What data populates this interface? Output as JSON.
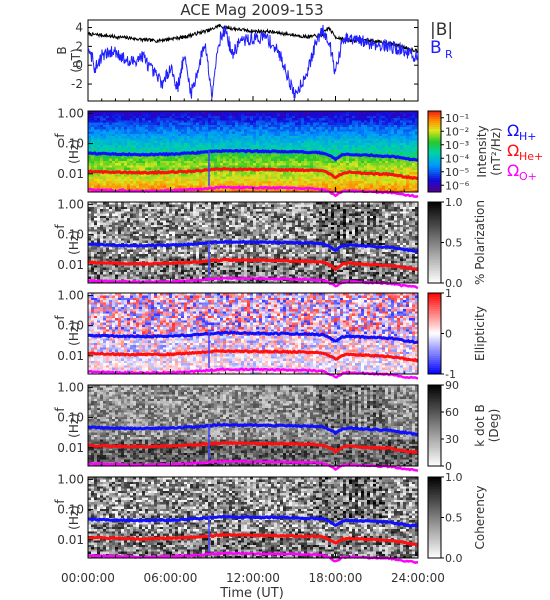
{
  "figure": {
    "title": "ACE Mag 2009-153",
    "xlabel": "Time (UT)",
    "time_ticks": [
      "00:00:00",
      "06:00:00",
      "12:00:00",
      "18:00:00",
      "24:00:00"
    ]
  },
  "chart_data": [
    {
      "type": "line",
      "panel": "magnetic-field",
      "ylabel": "B",
      "yunit": "(nT)",
      "ylim": [
        -3.8,
        4.8
      ],
      "yticks": [
        "4",
        "2",
        "0",
        "-2"
      ],
      "xlim_hours": [
        0,
        24
      ],
      "series": [
        {
          "name": "|B|",
          "color": "#000000",
          "x": [
            0,
            1,
            2,
            3,
            4,
            5,
            6,
            7,
            8,
            9,
            9.5,
            10,
            10.5,
            11,
            12,
            13,
            14,
            15,
            16,
            17,
            17.5,
            18,
            19,
            20,
            21,
            22,
            23,
            24
          ],
          "y": [
            3.3,
            3.2,
            3.0,
            2.9,
            2.7,
            2.6,
            2.8,
            3.0,
            3.4,
            3.8,
            4.2,
            4.0,
            3.9,
            3.8,
            3.6,
            3.6,
            3.4,
            3.2,
            3.0,
            3.2,
            4.0,
            3.0,
            2.6,
            2.7,
            2.5,
            2.3,
            1.9,
            1.5
          ]
        },
        {
          "name": "B",
          "subscript": "R",
          "color": "#2020ff",
          "x": [
            0,
            0.5,
            1,
            2,
            3,
            4,
            4.5,
            5,
            5.5,
            6,
            6.5,
            7,
            7.5,
            8,
            8.5,
            9,
            9.5,
            10,
            10.5,
            11,
            12,
            13,
            14,
            14.5,
            15,
            15.5,
            16,
            16.5,
            17,
            17.5,
            18,
            18.5,
            19,
            20,
            21,
            22,
            23,
            24
          ],
          "y": [
            2.5,
            -0.5,
            1.0,
            1.5,
            0.2,
            1.0,
            -0.3,
            -1.2,
            -2.0,
            0.0,
            -2.5,
            1.0,
            -3.0,
            -0.5,
            2.5,
            -3.0,
            2.5,
            3.8,
            1.0,
            2.5,
            2.8,
            3.0,
            1.0,
            -1.0,
            -3.2,
            -2.0,
            -0.5,
            2.0,
            3.8,
            2.8,
            -0.8,
            2.5,
            2.8,
            2.5,
            2.2,
            2.0,
            1.5,
            0.8
          ]
        }
      ]
    },
    {
      "type": "heatmap",
      "panel": "intensity",
      "ylabel": "f",
      "yunit": "(Hz)",
      "colorbar_label": "Intensity",
      "colorbar_unit": "(nT²/Hz)",
      "colorbar_ticks": [
        "10⁻¹",
        "10⁻²",
        "10⁻³",
        "10⁻⁴",
        "10⁻⁵",
        "10⁻⁶"
      ],
      "colormap": "rainbow"
    },
    {
      "type": "heatmap",
      "panel": "polarization",
      "ylabel": "f",
      "yunit": "(Hz)",
      "colorbar_label": "% Polarization",
      "colorbar_ticks": [
        "1.0",
        "0.5",
        "0.0"
      ],
      "colormap": "gray"
    },
    {
      "type": "heatmap",
      "panel": "ellipticity",
      "ylabel": "f",
      "yunit": "(Hz)",
      "colorbar_label": "Ellipticity",
      "colorbar_ticks": [
        "1",
        "0",
        "-1"
      ],
      "colormap": "blue-white-red"
    },
    {
      "type": "heatmap",
      "panel": "k-dot-b",
      "ylabel": "f",
      "yunit": "(Hz)",
      "colorbar_label": "k dot B",
      "colorbar_unit": "(Deg)",
      "colorbar_ticks": [
        "90",
        "60",
        "30",
        "0"
      ],
      "colormap": "gray"
    },
    {
      "type": "heatmap",
      "panel": "coherency",
      "ylabel": "f",
      "yunit": "(Hz)",
      "colorbar_label": "Coherency",
      "colorbar_ticks": [
        "1.0",
        "0.5",
        "0.0"
      ],
      "colormap": "gray"
    }
  ],
  "spectrogram": {
    "yticks": [
      "1.00",
      "0.10",
      "0.01"
    ],
    "ylim_hz": [
      0.0025,
      1.2
    ],
    "gyro_lines": [
      {
        "name": "Ω",
        "subscript": "H+",
        "color": "#1010ff",
        "x": [
          0,
          2,
          4,
          6,
          8,
          9,
          10,
          12,
          14,
          16,
          17,
          17.5,
          18,
          18.5,
          19,
          20,
          22,
          23,
          24
        ],
        "y": [
          0.048,
          0.045,
          0.043,
          0.045,
          0.05,
          0.055,
          0.058,
          0.056,
          0.055,
          0.052,
          0.05,
          0.042,
          0.03,
          0.042,
          0.045,
          0.042,
          0.038,
          0.032,
          0.028
        ]
      },
      {
        "name": "Ω",
        "subscript": "He+",
        "color": "#ff1010",
        "x": [
          0,
          2,
          4,
          6,
          8,
          9,
          10,
          12,
          14,
          16,
          17,
          17.5,
          18,
          18.5,
          19,
          20,
          22,
          23,
          24
        ],
        "y": [
          0.012,
          0.0113,
          0.0108,
          0.0113,
          0.0125,
          0.0138,
          0.0145,
          0.014,
          0.0138,
          0.013,
          0.0125,
          0.0105,
          0.0075,
          0.0105,
          0.0113,
          0.0105,
          0.0095,
          0.008,
          0.007
        ]
      },
      {
        "name": "Ω",
        "subscript": "O+",
        "color": "#ff00ff",
        "x": [
          0,
          2,
          4,
          6,
          8,
          9,
          10,
          12,
          14,
          16,
          17,
          17.5,
          18,
          18.5,
          19,
          20,
          22,
          23,
          24
        ],
        "y": [
          0.003,
          0.0028,
          0.0027,
          0.0028,
          0.0031,
          0.0034,
          0.0036,
          0.0035,
          0.0034,
          0.0033,
          0.0031,
          0.0026,
          0.0019,
          0.0026,
          0.0028,
          0.0026,
          0.0024,
          0.002,
          0.0018
        ]
      }
    ]
  }
}
